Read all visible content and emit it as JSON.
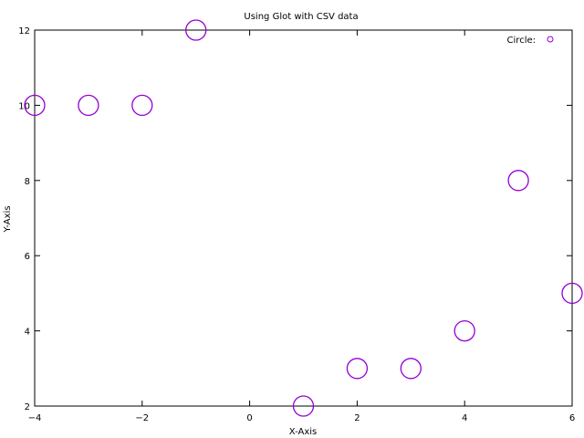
{
  "chart_data": {
    "type": "scatter",
    "title": "Using Glot with CSV data",
    "xlabel": "X-Axis",
    "ylabel": "Y-Axis",
    "xlim": [
      -4,
      6
    ],
    "ylim": [
      2,
      12
    ],
    "xticks": [
      -4,
      -2,
      0,
      2,
      4,
      6
    ],
    "yticks": [
      2,
      4,
      6,
      8,
      10,
      12
    ],
    "xtick_labels": [
      "−4",
      "−2",
      "0",
      "2",
      "4",
      "6"
    ],
    "ytick_labels": [
      "2",
      "4",
      "6",
      "8",
      "10",
      "12"
    ],
    "grid": false,
    "legend_position": "top-right",
    "series": [
      {
        "name": "Circle:",
        "color": "#9400d3",
        "marker": "circle",
        "points": [
          {
            "x": -4,
            "y": 10
          },
          {
            "x": -3,
            "y": 10
          },
          {
            "x": -2,
            "y": 10
          },
          {
            "x": -1,
            "y": 12
          },
          {
            "x": 1,
            "y": 2
          },
          {
            "x": 2,
            "y": 3
          },
          {
            "x": 3,
            "y": 3
          },
          {
            "x": 4,
            "y": 4
          },
          {
            "x": 5,
            "y": 8
          },
          {
            "x": 6,
            "y": 5
          }
        ]
      }
    ]
  }
}
